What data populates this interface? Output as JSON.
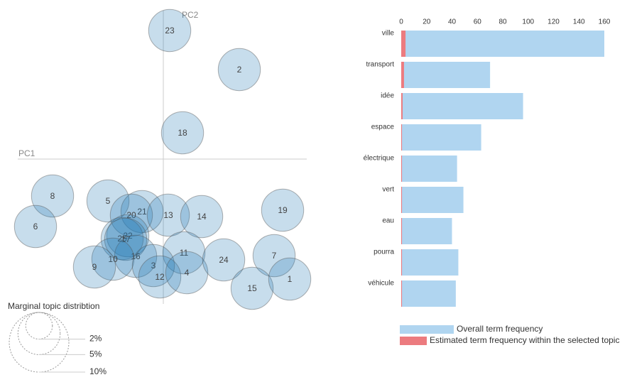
{
  "chart_data": [
    {
      "type": "scatter",
      "x_label": "PC1",
      "y_label": "PC2",
      "xlim": [
        -2.05,
        2.02
      ],
      "ylim": [
        -2.04,
        2.09
      ],
      "labels": [
        "23",
        "2",
        "18",
        "8",
        "6",
        "5",
        "21",
        "20",
        "13",
        "14",
        "19",
        "22",
        "25",
        "17",
        "16",
        "10",
        "9",
        "11",
        "3",
        "12",
        "4",
        "24",
        "7",
        "15",
        "1"
      ],
      "series": [
        {
          "color": "#1f77b4",
          "x": [
            0.09,
            1.07,
            0.27,
            -1.56,
            -1.8,
            -0.78,
            -0.3,
            -0.45,
            0.07,
            0.54,
            1.68,
            -0.5,
            -0.58,
            -0.53,
            -0.39,
            -0.71,
            -0.97,
            0.29,
            -0.14,
            -0.05,
            0.33,
            0.85,
            1.56,
            1.25,
            1.78
          ],
          "values": [
            1.81,
            1.26,
            0.37,
            -0.52,
            -0.95,
            -0.59,
            -0.74,
            -0.79,
            -0.79,
            -0.81,
            -0.72,
            -1.08,
            -1.12,
            -1.13,
            -1.37,
            -1.41,
            -1.52,
            -1.32,
            -1.5,
            -1.66,
            -1.6,
            -1.42,
            -1.36,
            -1.82,
            -1.69
          ],
          "sizes": [
            5,
            5,
            5,
            5,
            5,
            5,
            5,
            5,
            5,
            5,
            5,
            5,
            5,
            5,
            5,
            5,
            5,
            5,
            5,
            5,
            5,
            5,
            5,
            5,
            5
          ]
        }
      ],
      "size_legend": {
        "title": "Marginal topic distribtion",
        "sizes": [
          {
            "value": 2,
            "label": "2%"
          },
          {
            "value": 5,
            "label": "5%"
          },
          {
            "value": 10,
            "label": "10%"
          }
        ]
      }
    },
    {
      "type": "bar",
      "orientation": "horizontal",
      "categories": [
        "ville",
        "transport",
        "idée",
        "espace",
        "électrique",
        "vert",
        "eau",
        "pourra",
        "véhicule"
      ],
      "series": [
        {
          "name": "Overall term frequency",
          "color": "#b0d5f0",
          "values": [
            160,
            70,
            96,
            63,
            44,
            49,
            40,
            45,
            43
          ]
        },
        {
          "name": "Estimated term frequency within the selected topic",
          "color": "#ec7b7f",
          "values": [
            3.4,
            2.2,
            1.1,
            0.6,
            0.6,
            0.6,
            0.6,
            0.6,
            0.6
          ]
        }
      ],
      "xlim": [
        0,
        160
      ],
      "xticks": [
        0,
        20,
        40,
        60,
        80,
        100,
        120,
        140,
        160
      ]
    }
  ]
}
